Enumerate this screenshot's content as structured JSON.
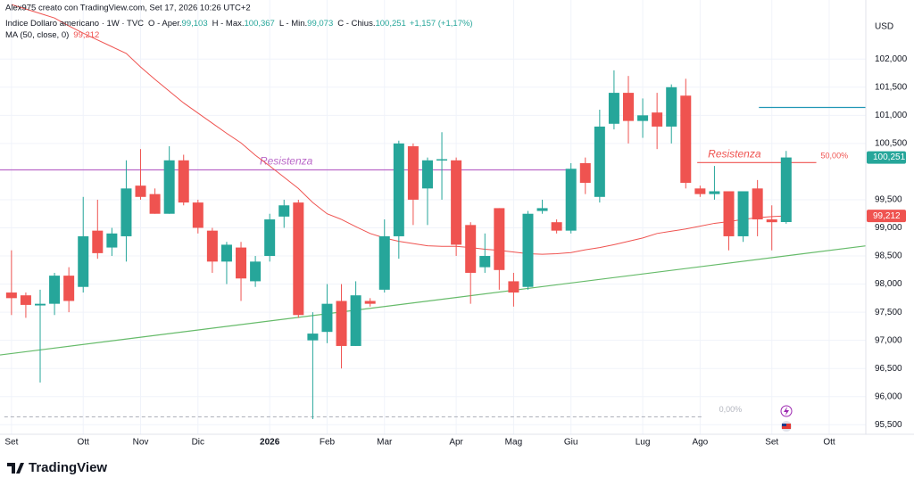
{
  "chart_data": {
    "type": "candlestick",
    "header": "Alex975 creato con TradingView.com, Set 17, 2026 10:26 UTC+2",
    "symbol": "Indice Dollaro americano · 1W · TVC",
    "ohlc_legend": [
      {
        "label": "O - Aper.",
        "value": "99,103"
      },
      {
        "label": "H - Max.",
        "value": "100,367"
      },
      {
        "label": "L - Min.",
        "value": "99,073"
      },
      {
        "label": "C - Chius.",
        "value": "100,251"
      },
      {
        "label": "",
        "value": "+1,157 (+1,17%)"
      }
    ],
    "ma_legend": {
      "label": "MA (50, close, 0)",
      "value": "99,212"
    },
    "currency": "USD",
    "up_color": "#26a69a",
    "down_color": "#ef5350",
    "grid": true,
    "xlim": [
      -0.8,
      59.55
    ],
    "xticks": [
      {
        "value": 0,
        "label": "Set"
      },
      {
        "value": 5,
        "label": "Ott"
      },
      {
        "value": 9,
        "label": "Nov"
      },
      {
        "value": 13,
        "label": "Dic"
      },
      {
        "value": 18,
        "label": "2026"
      },
      {
        "value": 22,
        "label": "Feb"
      },
      {
        "value": 26,
        "label": "Mar"
      },
      {
        "value": 31,
        "label": "Apr"
      },
      {
        "value": 35,
        "label": "Mag"
      },
      {
        "value": 39,
        "label": "Giu"
      },
      {
        "value": 44,
        "label": "Lug"
      },
      {
        "value": 48,
        "label": "Ago"
      },
      {
        "value": 53,
        "label": "Set"
      },
      {
        "value": 57,
        "label": "Ott"
      }
    ],
    "ylim": [
      95.33,
      102.86
    ],
    "yticks": [
      {
        "value": 102,
        "label": "102,000"
      },
      {
        "value": 101.5,
        "label": "101,500"
      },
      {
        "value": 101,
        "label": "101,000"
      },
      {
        "value": 100.5,
        "label": "100,500"
      },
      {
        "value": 99.5,
        "label": "99,500"
      },
      {
        "value": 99,
        "label": "99,000"
      },
      {
        "value": 98.5,
        "label": "98,500"
      },
      {
        "value": 98,
        "label": "98,000"
      },
      {
        "value": 97.5,
        "label": "97,500"
      },
      {
        "value": 97,
        "label": "97,000"
      },
      {
        "value": 96.5,
        "label": "96,500"
      },
      {
        "value": 96,
        "label": "96,000"
      },
      {
        "value": 95.5,
        "label": "95,500"
      }
    ],
    "open": [
      97.85,
      97.8,
      97.62,
      97.65,
      98.15,
      97.95,
      98.95,
      98.65,
      98.85,
      99.75,
      99.6,
      99.25,
      100.2,
      99.45,
      98.95,
      98.4,
      98.65,
      98.05,
      98.5,
      99.2,
      99.45,
      97.0,
      97.15,
      97.7,
      96.9,
      97.7,
      97.9,
      98.85,
      100.45,
      99.7,
      100.2,
      100.2,
      99.05,
      98.3,
      99.35,
      98.05,
      97.95,
      99.3,
      99.1,
      98.95,
      100.15,
      99.55,
      100.85,
      101.4,
      100.9,
      101.05,
      100.8,
      101.35,
      99.7,
      99.6,
      99.65,
      98.85,
      99.7,
      99.15,
      99.103
    ],
    "high": [
      98.6,
      97.85,
      97.9,
      98.2,
      98.3,
      99.55,
      99.5,
      99.0,
      100.2,
      100.4,
      99.7,
      100.45,
      100.3,
      99.5,
      99.0,
      98.75,
      98.75,
      98.5,
      99.25,
      99.5,
      99.5,
      97.5,
      98.0,
      98.0,
      98.05,
      97.75,
      99.15,
      100.55,
      100.5,
      100.25,
      100.7,
      100.25,
      99.1,
      98.9,
      99.35,
      98.2,
      99.3,
      99.5,
      99.15,
      100.15,
      100.25,
      101.1,
      101.8,
      101.7,
      101.3,
      101.4,
      101.55,
      101.65,
      99.75,
      100.1,
      99.65,
      99.65,
      99.85,
      99.4,
      100.367
    ],
    "low": [
      97.45,
      97.4,
      96.25,
      97.45,
      97.5,
      97.85,
      98.45,
      98.5,
      98.4,
      99.5,
      99.25,
      99.25,
      99.4,
      98.9,
      98.2,
      98.0,
      97.7,
      97.95,
      98.4,
      99.0,
      97.4,
      95.6,
      96.95,
      96.5,
      96.9,
      97.6,
      97.85,
      98.45,
      99.05,
      99.05,
      99.5,
      98.5,
      97.65,
      98.2,
      97.9,
      97.6,
      97.9,
      99.25,
      98.9,
      98.9,
      99.6,
      99.45,
      100.75,
      100.5,
      100.6,
      100.4,
      100.5,
      99.7,
      99.55,
      99.5,
      98.6,
      98.75,
      98.85,
      98.6,
      99.073
    ],
    "close": [
      97.75,
      97.63,
      97.65,
      98.15,
      97.7,
      98.85,
      98.55,
      98.9,
      99.7,
      99.55,
      99.25,
      100.2,
      99.45,
      99.0,
      98.4,
      98.7,
      98.1,
      98.4,
      99.15,
      99.4,
      97.45,
      97.12,
      97.65,
      96.9,
      97.8,
      97.65,
      98.85,
      100.5,
      99.5,
      100.2,
      100.22,
      98.7,
      98.2,
      98.5,
      98.25,
      97.85,
      99.25,
      99.35,
      98.95,
      100.05,
      99.8,
      100.8,
      101.4,
      100.9,
      101.0,
      100.8,
      101.5,
      99.8,
      99.6,
      99.65,
      98.85,
      99.65,
      99.15,
      99.1,
      100.251
    ],
    "ma": {
      "color": "#ef5350",
      "values": [
        102.97,
        102.89,
        102.81,
        102.73,
        102.59,
        102.46,
        102.34,
        102.22,
        102.1,
        101.86,
        101.64,
        101.43,
        101.22,
        101.04,
        100.86,
        100.68,
        100.51,
        100.29,
        100.1,
        99.9,
        99.7,
        99.45,
        99.25,
        99.15,
        99.02,
        98.9,
        98.82,
        98.76,
        98.72,
        98.68,
        98.67,
        98.67,
        98.65,
        98.62,
        98.6,
        98.57,
        98.54,
        98.53,
        98.54,
        98.56,
        98.61,
        98.65,
        98.7,
        98.76,
        98.82,
        98.9,
        98.94,
        98.98,
        99.03,
        99.08,
        99.11,
        99.15,
        99.18,
        99.2,
        99.212
      ]
    },
    "drawings": [
      {
        "name": "trend-line",
        "color": "#66bb6a",
        "x": [
          -0.8,
          59.55
        ],
        "y": [
          96.74,
          98.68
        ]
      },
      {
        "name": "resistance-purple",
        "color": "#ba68c8",
        "x": [
          -0.8,
          39.1
        ],
        "y": [
          100.03,
          100.03
        ],
        "text": "Resistenza"
      },
      {
        "name": "resistance-red",
        "color": "#ef5350",
        "x": [
          47.8,
          56.1
        ],
        "y": [
          100.16,
          100.16
        ],
        "text": "Resistenza",
        "level": "50,00%"
      },
      {
        "name": "blue-line",
        "color": "#2196b6",
        "x": [
          52.1,
          59.55
        ],
        "y": [
          101.14,
          101.14
        ]
      },
      {
        "name": "fib-zero",
        "color": "#b2b5be",
        "x": [
          -0.5,
          48.2
        ],
        "y": [
          95.64,
          95.64
        ],
        "level": "0,00%",
        "dashed": true
      }
    ],
    "last_price": {
      "value": 100.251,
      "label": "100,251"
    },
    "ma_price": {
      "value": 99.212,
      "label": "99,212"
    },
    "brand": "TradingView"
  }
}
